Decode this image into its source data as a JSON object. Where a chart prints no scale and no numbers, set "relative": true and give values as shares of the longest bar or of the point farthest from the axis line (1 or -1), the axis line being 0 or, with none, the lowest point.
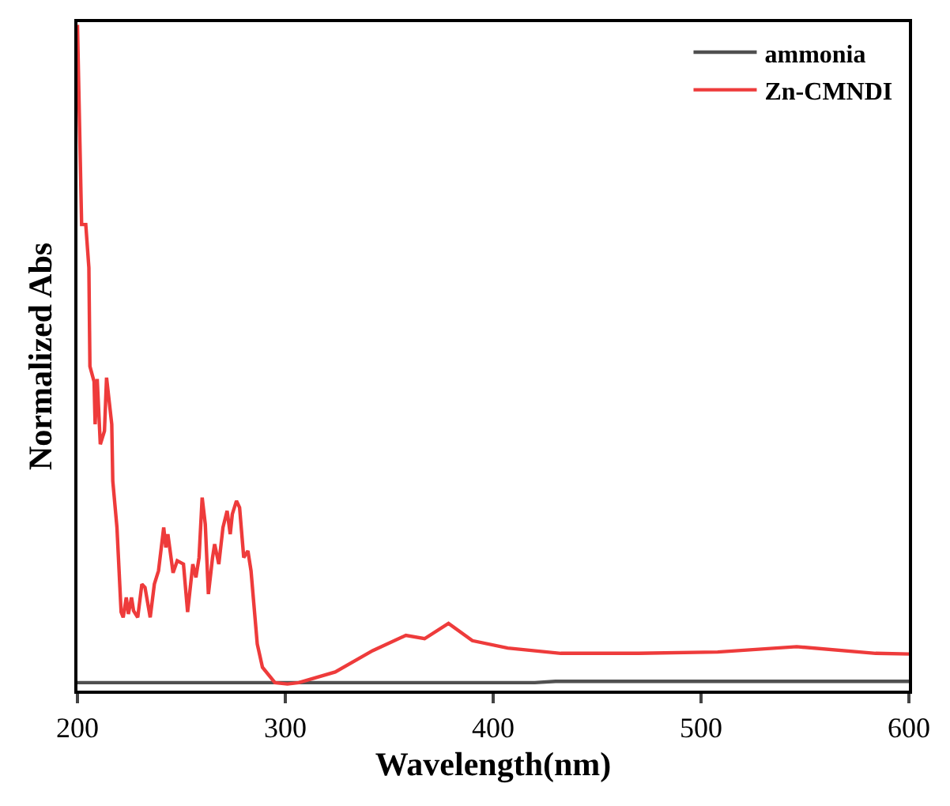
{
  "chart_data": {
    "type": "line",
    "xlabel": "Wavelength(nm)",
    "ylabel": "Normalized Abs",
    "relative": true,
    "xlim": [
      200,
      600
    ],
    "xticks": [
      200,
      300,
      400,
      500,
      600
    ],
    "legend": "top right",
    "marker": "none",
    "line_style": "solid",
    "series": [
      {
        "name": "ammonia",
        "color": "#505050",
        "x": [
          200,
          420,
          430,
          600
        ],
        "values": [
          0.012,
          0.012,
          0.014,
          0.014
        ]
      },
      {
        "name": "Zn-CMNDI",
        "color": "#ee3b3b",
        "x": [
          200,
          202,
          204,
          205.5,
          206,
          208,
          208.5,
          209.5,
          211,
          213,
          214,
          216.5,
          217,
          219,
          221,
          222,
          223.5,
          224.5,
          226,
          227,
          229,
          231,
          232.5,
          235,
          237,
          239,
          241.5,
          242.5,
          243.5,
          246,
          248,
          251,
          253,
          255.5,
          257,
          258.5,
          260,
          261.5,
          263,
          265,
          266,
          268,
          270,
          272,
          273.5,
          274.5,
          276.5,
          278,
          280,
          282,
          283.5,
          286.5,
          289,
          295,
          301,
          306.5,
          324,
          342,
          358,
          367,
          378.5,
          390,
          407,
          432.5,
          470,
          508,
          546,
          584,
          600
        ],
        "values": [
          1.0,
          0.7,
          0.7,
          0.635,
          0.487,
          0.464,
          0.4,
          0.468,
          0.37,
          0.39,
          0.47,
          0.4,
          0.315,
          0.245,
          0.118,
          0.11,
          0.14,
          0.115,
          0.14,
          0.12,
          0.11,
          0.16,
          0.155,
          0.11,
          0.16,
          0.18,
          0.245,
          0.215,
          0.235,
          0.177,
          0.195,
          0.19,
          0.118,
          0.19,
          0.17,
          0.2,
          0.29,
          0.25,
          0.145,
          0.2,
          0.22,
          0.19,
          0.245,
          0.27,
          0.235,
          0.265,
          0.285,
          0.275,
          0.2,
          0.21,
          0.18,
          0.07,
          0.035,
          0.012,
          0.01,
          0.012,
          0.028,
          0.06,
          0.083,
          0.078,
          0.101,
          0.075,
          0.064,
          0.056,
          0.056,
          0.058,
          0.066,
          0.056,
          0.055
        ]
      }
    ]
  }
}
